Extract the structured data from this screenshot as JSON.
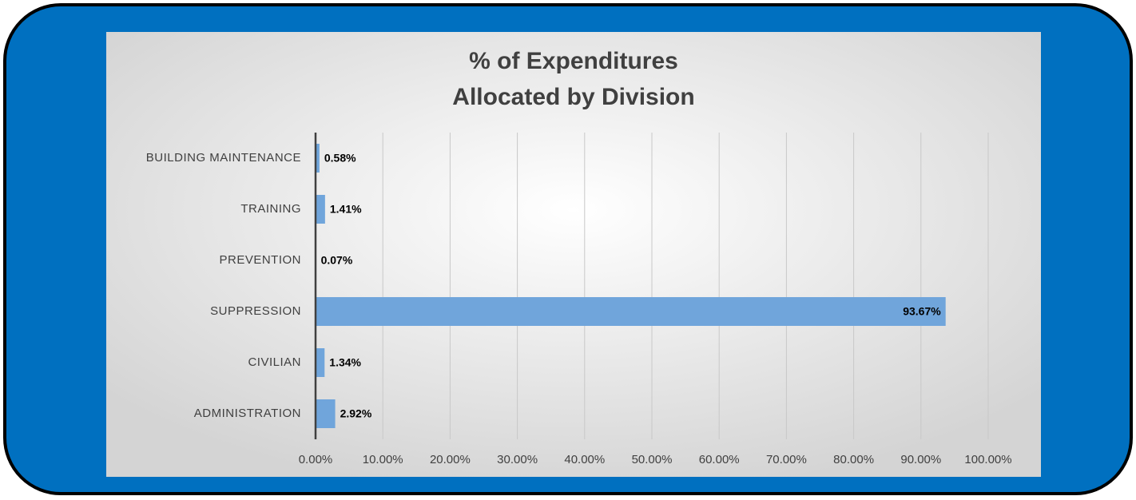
{
  "chart_data": {
    "type": "hbar",
    "title": [
      "% of Expenditures",
      "Allocated by Division"
    ],
    "categories": [
      "BUILDING MAINTENANCE",
      "TRAINING",
      "PREVENTION",
      "SUPPRESSION",
      "CIVILIAN",
      "ADMINISTRATION"
    ],
    "values": [
      0.58,
      1.41,
      0.07,
      93.67,
      1.34,
      2.92
    ],
    "value_labels": [
      "0.58%",
      "1.41%",
      "0.07%",
      "93.67%",
      "1.34%",
      "2.92%"
    ],
    "color": "#70a5db",
    "xlim": [
      0,
      100
    ],
    "xticks": [
      {
        "value": 0,
        "label": "0.00%"
      },
      {
        "value": 10,
        "label": "10.00%"
      },
      {
        "value": 20,
        "label": "20.00%"
      },
      {
        "value": 30,
        "label": "30.00%"
      },
      {
        "value": 40,
        "label": "40.00%"
      },
      {
        "value": 50,
        "label": "50.00%"
      },
      {
        "value": 60,
        "label": "60.00%"
      },
      {
        "value": 70,
        "label": "70.00%"
      },
      {
        "value": 80,
        "label": "80.00%"
      },
      {
        "value": 90,
        "label": "90.00%"
      },
      {
        "value": 100,
        "label": "100.00%"
      }
    ],
    "grid": true
  }
}
